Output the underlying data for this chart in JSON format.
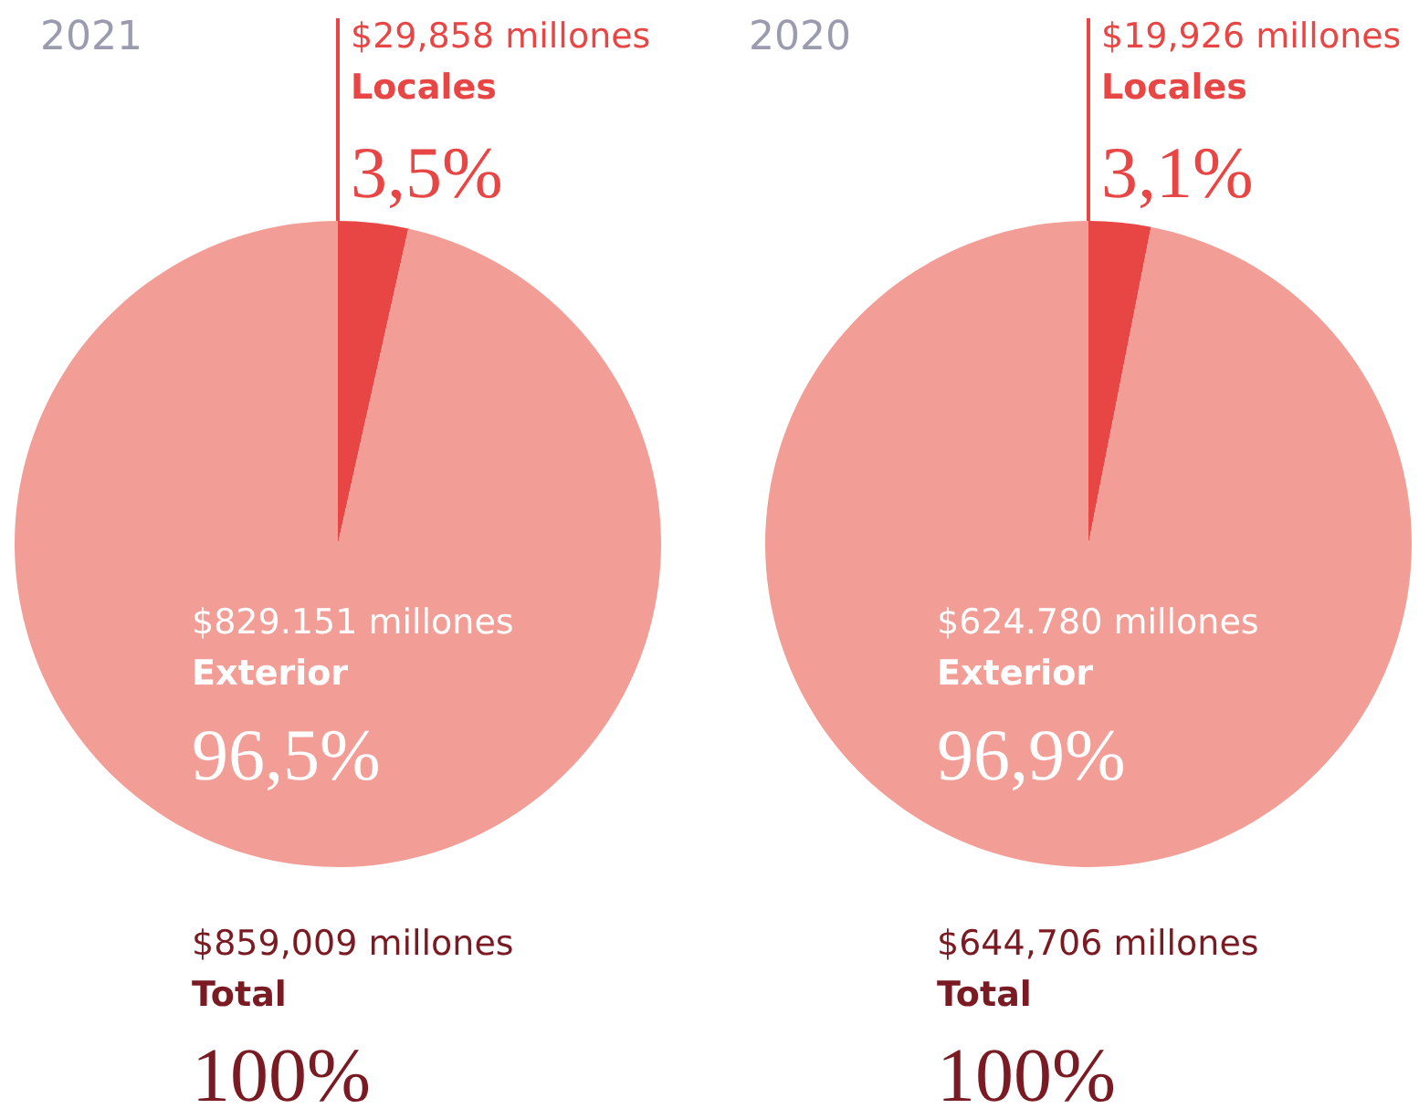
{
  "chart_data": [
    {
      "type": "pie",
      "title": "2021",
      "categories": [
        "Locales",
        "Exterior"
      ],
      "values": [
        3.5,
        96.5
      ],
      "colors": [
        "#e84545",
        "#f29e97"
      ],
      "value_labels": [
        "3,5%",
        "96,5%"
      ],
      "annotations": [
        "$29,858 millones",
        "$829.151 millones",
        "$859,009 millones",
        "Total",
        "100%"
      ]
    },
    {
      "type": "pie",
      "title": "2020",
      "categories": [
        "Locales",
        "Exterior"
      ],
      "values": [
        3.1,
        96.9
      ],
      "colors": [
        "#e84545",
        "#f29e97"
      ],
      "value_labels": [
        "3,1%",
        "96,9%"
      ],
      "annotations": [
        "$19,926 millones",
        "$624.780 millones",
        "$644,706 millones",
        "Total",
        "100%"
      ]
    }
  ]
}
